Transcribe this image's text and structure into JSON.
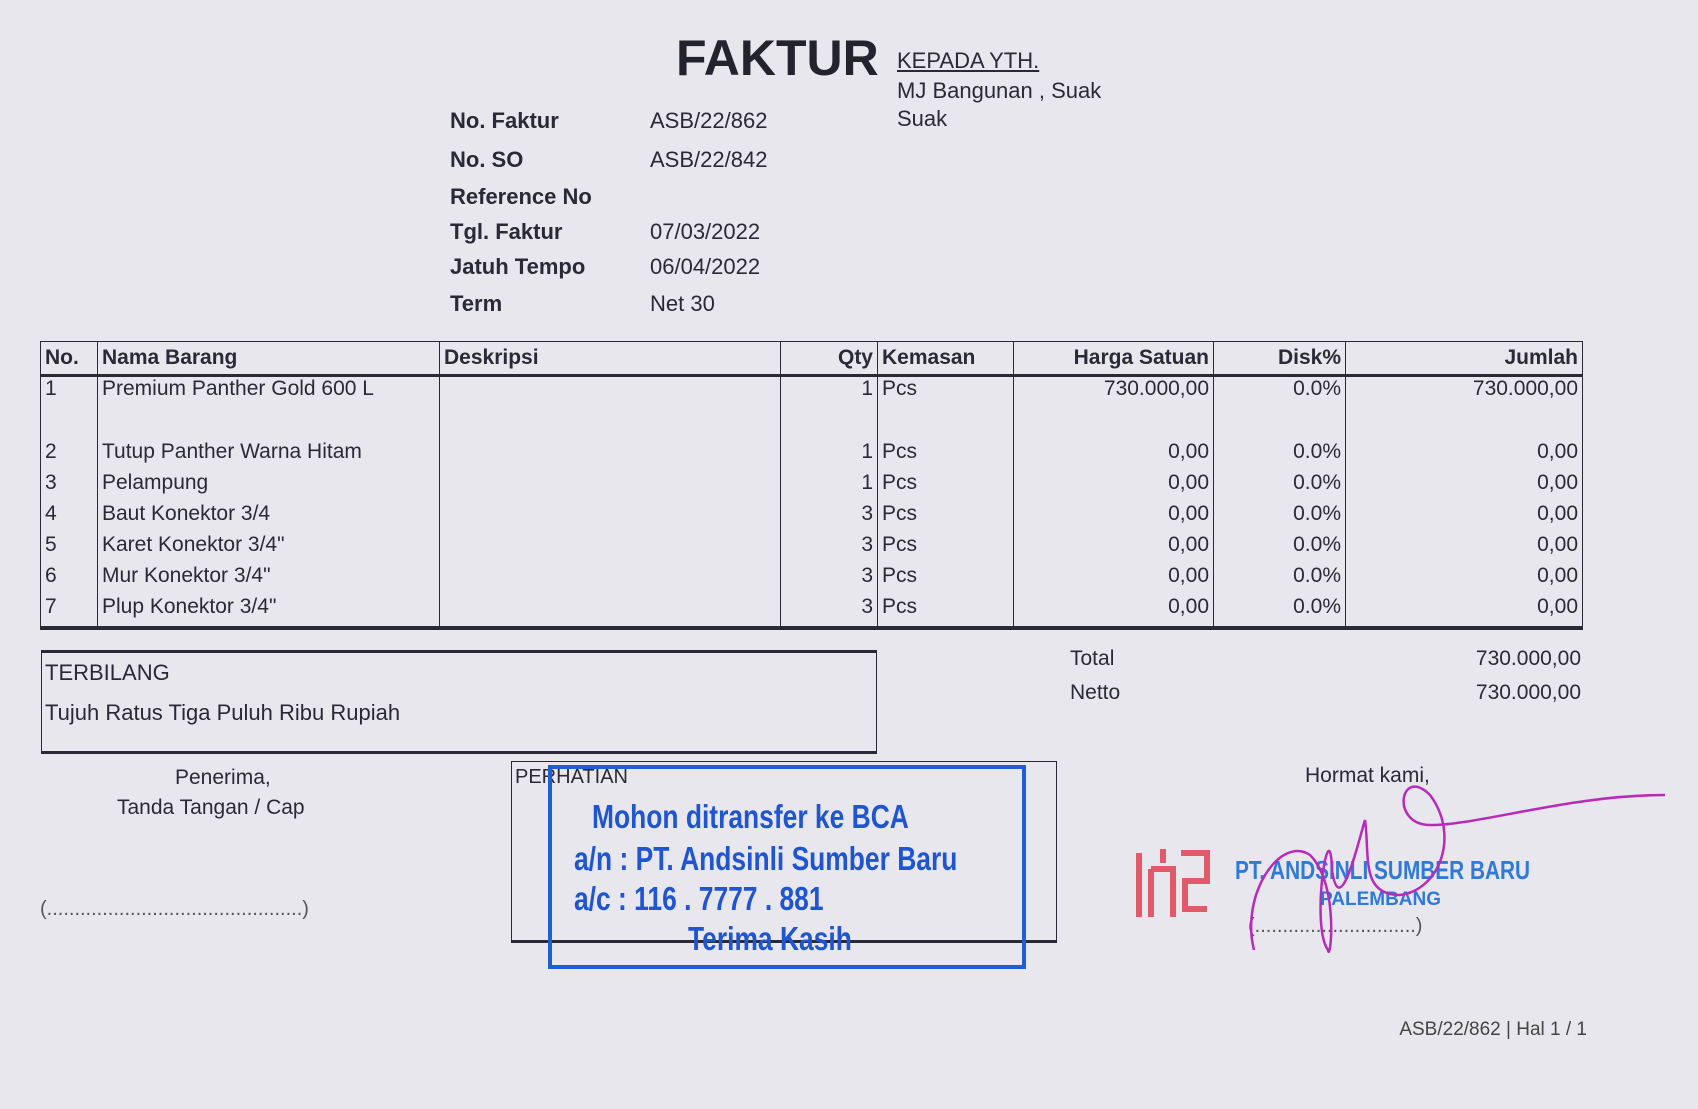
{
  "header": {
    "title": "FAKTUR",
    "recipient_label": "KEPADA YTH.",
    "recipient_lines": [
      "MJ Bangunan , Suak",
      "Suak"
    ]
  },
  "info": [
    {
      "label": "No. Faktur",
      "value": "ASB/22/862"
    },
    {
      "label": "No. SO",
      "value": "ASB/22/842"
    },
    {
      "label": "Reference No",
      "value": ""
    },
    {
      "label": "Tgl. Faktur",
      "value": "07/03/2022"
    },
    {
      "label": "Jatuh Tempo",
      "value": "06/04/2022"
    },
    {
      "label": "Term",
      "value": "Net 30"
    }
  ],
  "table": {
    "headers": [
      "No.",
      "Nama Barang",
      "Deskripsi",
      "Qty",
      "Kemasan",
      "Harga Satuan",
      "Disk%",
      "Jumlah"
    ],
    "rows": [
      {
        "no": "1",
        "nama": "Premium Panther Gold  600 L",
        "deskripsi": "",
        "qty": "1",
        "kemasan": "Pcs",
        "harga": "730.000,00",
        "disk": "0.0%",
        "jumlah": "730.000,00"
      },
      {
        "no": "2",
        "nama": "Tutup Panther Warna Hitam",
        "deskripsi": "",
        "qty": "1",
        "kemasan": "Pcs",
        "harga": "0,00",
        "disk": "0.0%",
        "jumlah": "0,00"
      },
      {
        "no": "3",
        "nama": "Pelampung",
        "deskripsi": "",
        "qty": "1",
        "kemasan": "Pcs",
        "harga": "0,00",
        "disk": "0.0%",
        "jumlah": "0,00"
      },
      {
        "no": "4",
        "nama": "Baut Konektor 3/4",
        "deskripsi": "",
        "qty": "3",
        "kemasan": "Pcs",
        "harga": "0,00",
        "disk": "0.0%",
        "jumlah": "0,00"
      },
      {
        "no": "5",
        "nama": "Karet Konektor 3/4\"",
        "deskripsi": "",
        "qty": "3",
        "kemasan": "Pcs",
        "harga": "0,00",
        "disk": "0.0%",
        "jumlah": "0,00"
      },
      {
        "no": "6",
        "nama": "Mur Konektor 3/4\"",
        "deskripsi": "",
        "qty": "3",
        "kemasan": "Pcs",
        "harga": "0,00",
        "disk": "0.0%",
        "jumlah": "0,00"
      },
      {
        "no": "7",
        "nama": "Plup Konektor 3/4\"",
        "deskripsi": "",
        "qty": "3",
        "kemasan": "Pcs",
        "harga": "0,00",
        "disk": "0.0%",
        "jumlah": "0,00"
      }
    ]
  },
  "terbilang": {
    "label": "TERBILANG",
    "text": "Tujuh Ratus Tiga Puluh Ribu Rupiah"
  },
  "totals": {
    "total_label": "Total",
    "total_value": "730.000,00",
    "netto_label": "Netto",
    "netto_value": "730.000,00"
  },
  "receiver": {
    "line1": "Penerima,",
    "line2": "Tanda Tangan / Cap",
    "sign_line": "(..............................................)"
  },
  "perhatian": {
    "label": "PERHATIAN"
  },
  "stamp": {
    "line1": "Mohon ditransfer ke BCA",
    "line2": "a/n : PT. Andsinli Sumber Baru",
    "line3": "a/c : 116 . 7777 . 881",
    "line4": "Terima Kasih",
    "color": "#1f55d0"
  },
  "sender": {
    "greeting": "Hormat kami,",
    "company": "PT. ANDSINLI SUMBER BARU",
    "city": "PALEMBANG",
    "sign_line": "(.............................)",
    "logo_text": "ASB",
    "logo_color": "#e05a6a",
    "signature_color": "#b82bb8"
  },
  "footer": {
    "page": "ASB/22/862 | Hal 1 / 1"
  }
}
